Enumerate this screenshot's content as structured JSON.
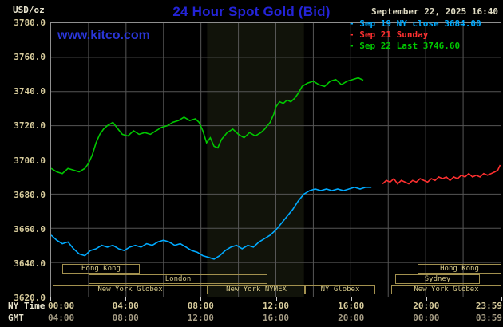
{
  "header": {
    "units": "USD/oz",
    "title": "24 Hour Spot Gold (Bid)",
    "datetime": "September 22, 2025 16:40",
    "watermark": "www.kitco.com"
  },
  "colors": {
    "title_blue": "#2424d8",
    "watermark_blue": "#2a36d8",
    "sep19_cyan": "#00aaff",
    "sep21_red": "#ff3030",
    "sep22_green": "#00c800",
    "axis_tan": "#d9cd9d",
    "session_tan": "#a3914f",
    "grid_gray": "#565656",
    "background": "#000000"
  },
  "legend": {
    "marker": "-",
    "items": [
      {
        "label": "Sep 19 NY close 3684.00",
        "color": "#00aaff"
      },
      {
        "label": "Sep 21 Sunday",
        "color": "#ff3030"
      },
      {
        "label": "Sep 22 Last 3746.60",
        "color": "#00c800"
      }
    ]
  },
  "axes": {
    "y_ticks": [
      "3780.0",
      "3760.0",
      "3740.0",
      "3720.0",
      "3700.0",
      "3680.0",
      "3660.0",
      "3640.0",
      "3620.0"
    ],
    "x_rows": [
      {
        "label": "NY Time",
        "ticks": [
          "00:00",
          "04:00",
          "08:00",
          "12:00",
          "16:00",
          "20:00",
          "23:59"
        ]
      },
      {
        "label": "GMT",
        "ticks": [
          "04:00",
          "08:00",
          "12:00",
          "16:00",
          "20:00",
          "00:00",
          "03:59"
        ]
      }
    ]
  },
  "sessions": [
    {
      "row": 0,
      "from_hour": 0.6,
      "to_hour": 4.7,
      "label": "Hong Kong"
    },
    {
      "row": 0,
      "from_hour": 19.5,
      "to_hour": 23.98,
      "label": "Hong Kong"
    },
    {
      "row": 1,
      "from_hour": 2.0,
      "to_hour": 11.5,
      "label": "London"
    },
    {
      "row": 1,
      "from_hour": 18.3,
      "to_hour": 22.8,
      "label": "Sydney"
    },
    {
      "row": 2,
      "from_hour": 0.1,
      "to_hour": 8.33,
      "label": "New York Globex"
    },
    {
      "row": 2,
      "from_hour": 8.33,
      "to_hour": 13.5,
      "label": "New York NYMEX"
    },
    {
      "row": 2,
      "from_hour": 13.5,
      "to_hour": 17.25,
      "label": "NY Globex"
    },
    {
      "row": 2,
      "from_hour": 18.1,
      "to_hour": 23.98,
      "label": "New York Globex"
    }
  ],
  "chart_data": {
    "type": "line",
    "title": "24 Hour Spot Gold (Bid)",
    "xlabel": "NY Time",
    "ylabel": "USD/oz",
    "x_range_hours": [
      0,
      24
    ],
    "ylim": [
      3620,
      3780
    ],
    "y_grid_step": 20,
    "x_grid_step_hours": 2,
    "grid": true,
    "legend_position": "top-right",
    "band": {
      "from_hour": 8.33,
      "to_hour": 13.5,
      "color": "#11130a",
      "meaning": "New York NYMEX session"
    },
    "series": [
      {
        "id": "sep19",
        "name": "Sep 19 NY close 3684.00",
        "color": "#00aaff",
        "points": [
          [
            0,
            3656
          ],
          [
            0.3,
            3653
          ],
          [
            0.6,
            3651
          ],
          [
            0.9,
            3652
          ],
          [
            1.2,
            3648
          ],
          [
            1.5,
            3645
          ],
          [
            1.8,
            3644
          ],
          [
            2.1,
            3647
          ],
          [
            2.4,
            3648
          ],
          [
            2.7,
            3650
          ],
          [
            3.0,
            3649
          ],
          [
            3.3,
            3650
          ],
          [
            3.6,
            3648
          ],
          [
            3.9,
            3647
          ],
          [
            4.2,
            3649
          ],
          [
            4.5,
            3650
          ],
          [
            4.8,
            3649
          ],
          [
            5.1,
            3651
          ],
          [
            5.4,
            3650
          ],
          [
            5.7,
            3652
          ],
          [
            6.0,
            3653
          ],
          [
            6.3,
            3652
          ],
          [
            6.6,
            3650
          ],
          [
            6.9,
            3651
          ],
          [
            7.2,
            3649
          ],
          [
            7.5,
            3647
          ],
          [
            7.8,
            3646
          ],
          [
            8.1,
            3644
          ],
          [
            8.4,
            3643
          ],
          [
            8.7,
            3642
          ],
          [
            9.0,
            3644
          ],
          [
            9.3,
            3647
          ],
          [
            9.6,
            3649
          ],
          [
            9.9,
            3650
          ],
          [
            10.2,
            3648
          ],
          [
            10.5,
            3650
          ],
          [
            10.8,
            3649
          ],
          [
            11.1,
            3652
          ],
          [
            11.4,
            3654
          ],
          [
            11.7,
            3656
          ],
          [
            12.0,
            3659
          ],
          [
            12.3,
            3663
          ],
          [
            12.6,
            3667
          ],
          [
            12.9,
            3671
          ],
          [
            13.2,
            3676
          ],
          [
            13.5,
            3680
          ],
          [
            13.8,
            3682
          ],
          [
            14.1,
            3683
          ],
          [
            14.4,
            3682
          ],
          [
            14.7,
            3683
          ],
          [
            15.0,
            3682
          ],
          [
            15.3,
            3683
          ],
          [
            15.6,
            3682
          ],
          [
            15.9,
            3683
          ],
          [
            16.2,
            3684
          ],
          [
            16.5,
            3683
          ],
          [
            16.8,
            3684
          ],
          [
            17.1,
            3684
          ]
        ]
      },
      {
        "id": "sep21",
        "name": "Sep 21 Sunday",
        "color": "#ff3030",
        "points": [
          [
            17.7,
            3686
          ],
          [
            17.9,
            3688
          ],
          [
            18.1,
            3687
          ],
          [
            18.3,
            3689
          ],
          [
            18.5,
            3686
          ],
          [
            18.7,
            3688
          ],
          [
            18.9,
            3687
          ],
          [
            19.1,
            3686
          ],
          [
            19.3,
            3688
          ],
          [
            19.5,
            3687
          ],
          [
            19.7,
            3689
          ],
          [
            19.9,
            3688
          ],
          [
            20.1,
            3687
          ],
          [
            20.3,
            3689
          ],
          [
            20.5,
            3688
          ],
          [
            20.7,
            3690
          ],
          [
            20.9,
            3689
          ],
          [
            21.1,
            3690
          ],
          [
            21.3,
            3688
          ],
          [
            21.5,
            3690
          ],
          [
            21.7,
            3689
          ],
          [
            21.9,
            3691
          ],
          [
            22.1,
            3690
          ],
          [
            22.3,
            3692
          ],
          [
            22.5,
            3690
          ],
          [
            22.7,
            3691
          ],
          [
            22.9,
            3690
          ],
          [
            23.1,
            3692
          ],
          [
            23.3,
            3691
          ],
          [
            23.5,
            3692
          ],
          [
            23.7,
            3693
          ],
          [
            23.85,
            3694
          ],
          [
            23.98,
            3697
          ]
        ]
      },
      {
        "id": "sep22",
        "name": "Sep 22 Last 3746.60",
        "color": "#00c800",
        "points": [
          [
            0,
            3695
          ],
          [
            0.3,
            3693
          ],
          [
            0.6,
            3692
          ],
          [
            0.9,
            3695
          ],
          [
            1.2,
            3694
          ],
          [
            1.5,
            3693
          ],
          [
            1.8,
            3695
          ],
          [
            2.0,
            3698
          ],
          [
            2.2,
            3703
          ],
          [
            2.4,
            3710
          ],
          [
            2.6,
            3715
          ],
          [
            2.8,
            3718
          ],
          [
            3.0,
            3720
          ],
          [
            3.3,
            3722
          ],
          [
            3.5,
            3719
          ],
          [
            3.8,
            3715
          ],
          [
            4.1,
            3714
          ],
          [
            4.4,
            3717
          ],
          [
            4.7,
            3715
          ],
          [
            5.0,
            3716
          ],
          [
            5.3,
            3715
          ],
          [
            5.6,
            3717
          ],
          [
            5.9,
            3719
          ],
          [
            6.2,
            3720
          ],
          [
            6.5,
            3722
          ],
          [
            6.8,
            3723
          ],
          [
            7.1,
            3725
          ],
          [
            7.4,
            3723
          ],
          [
            7.7,
            3724
          ],
          [
            7.9,
            3722
          ],
          [
            8.1,
            3717
          ],
          [
            8.3,
            3710
          ],
          [
            8.5,
            3713
          ],
          [
            8.7,
            3708
          ],
          [
            8.9,
            3707
          ],
          [
            9.1,
            3712
          ],
          [
            9.4,
            3716
          ],
          [
            9.7,
            3718
          ],
          [
            10.0,
            3715
          ],
          [
            10.3,
            3713
          ],
          [
            10.6,
            3716
          ],
          [
            10.9,
            3714
          ],
          [
            11.2,
            3716
          ],
          [
            11.4,
            3718
          ],
          [
            11.7,
            3722
          ],
          [
            11.9,
            3727
          ],
          [
            12.0,
            3731
          ],
          [
            12.2,
            3734
          ],
          [
            12.4,
            3733
          ],
          [
            12.6,
            3735
          ],
          [
            12.8,
            3734
          ],
          [
            13.0,
            3736
          ],
          [
            13.2,
            3739
          ],
          [
            13.4,
            3743
          ],
          [
            13.7,
            3745
          ],
          [
            14.0,
            3746
          ],
          [
            14.3,
            3744
          ],
          [
            14.6,
            3743
          ],
          [
            14.9,
            3746
          ],
          [
            15.2,
            3747
          ],
          [
            15.5,
            3744
          ],
          [
            15.8,
            3746
          ],
          [
            16.1,
            3747
          ],
          [
            16.4,
            3748
          ],
          [
            16.67,
            3746.6
          ]
        ]
      }
    ]
  }
}
